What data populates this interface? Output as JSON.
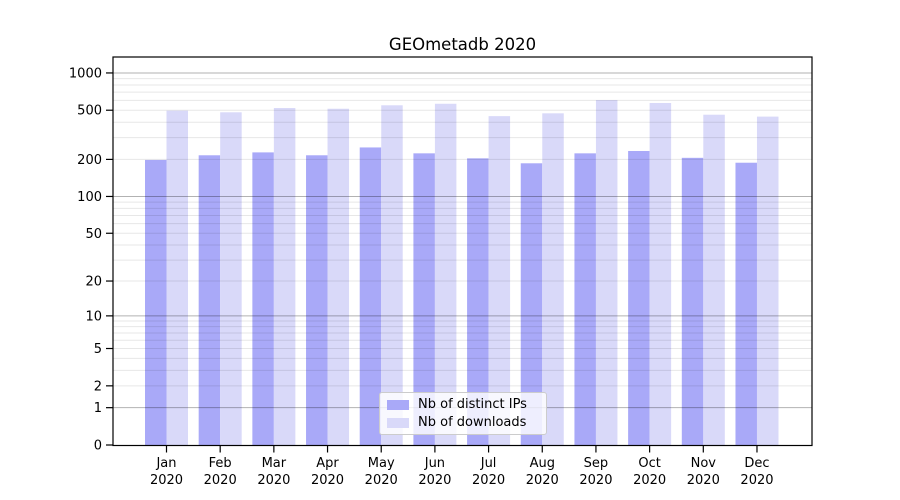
{
  "chart_data": {
    "type": "bar",
    "title": "GEOmetadb 2020",
    "xlabel": "",
    "ylabel": "",
    "categories": [
      "Jan",
      "Feb",
      "Mar",
      "Apr",
      "May",
      "Jun",
      "Jul",
      "Aug",
      "Sep",
      "Oct",
      "Nov",
      "Dec"
    ],
    "year_label": "2020",
    "series": [
      {
        "name": "Nb of distinct IPs",
        "color": "#a9a9f8",
        "values": [
          198,
          216,
          228,
          216,
          250,
          224,
          204,
          186,
          224,
          234,
          206,
          188
        ]
      },
      {
        "name": "Nb of downloads",
        "color": "#d9d9f9",
        "values": [
          496,
          481,
          521,
          514,
          548,
          564,
          448,
          472,
          604,
          572,
          460,
          444
        ]
      }
    ],
    "y_scale": "log10(value+1)",
    "y_ticks": [
      0,
      1,
      2,
      5,
      10,
      20,
      50,
      100,
      200,
      500,
      1000
    ],
    "ylim": [
      0,
      1345
    ],
    "grid": {
      "enabled": true,
      "major_values": [
        1,
        10,
        100,
        1000
      ],
      "major_color": "rgba(0,0,0,0.30)",
      "minor_color": "rgba(0,0,0,0.095)"
    },
    "legend": {
      "position": "lower center",
      "entries": [
        "Nb of distinct IPs",
        "Nb of downloads"
      ]
    },
    "colors": {
      "spine": "#000000",
      "text": "#000000",
      "background": "#ffffff"
    }
  }
}
